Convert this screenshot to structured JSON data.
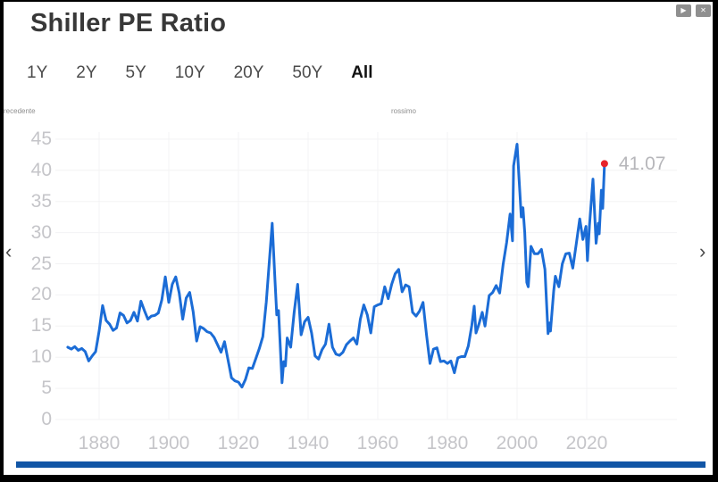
{
  "window": {
    "title": "Shiller PE Ratio",
    "controls": [
      {
        "name": "play",
        "glyph": "▶"
      },
      {
        "name": "close",
        "glyph": "✕"
      }
    ]
  },
  "ranges": [
    {
      "label": "1Y",
      "active": false
    },
    {
      "label": "2Y",
      "active": false
    },
    {
      "label": "5Y",
      "active": false
    },
    {
      "label": "10Y",
      "active": false
    },
    {
      "label": "20Y",
      "active": false
    },
    {
      "label": "50Y",
      "active": false
    },
    {
      "label": "All",
      "active": true
    }
  ],
  "nav": {
    "prev_label": "recedente",
    "next_label": "rossimo",
    "prev_chevron": "‹",
    "next_chevron": "›"
  },
  "chart_data": {
    "type": "line",
    "title": "Shiller PE Ratio",
    "xlabel": "",
    "ylabel": "",
    "xlim": [
      1869,
      2031
    ],
    "ylim": [
      0,
      45
    ],
    "x_ticks": [
      1880,
      1900,
      1920,
      1940,
      1960,
      1980,
      2000,
      2020
    ],
    "y_ticks": [
      45,
      40,
      35,
      30,
      25,
      20,
      15,
      10,
      5,
      0
    ],
    "grid": true,
    "line_color": "#1b6cd6",
    "marker_color": "#e7232b",
    "axis_label_color": "#c5c5c9",
    "last_value_label": "41.07",
    "last_value": 41.07,
    "series": [
      {
        "name": "Shiller PE",
        "points": [
          [
            1871,
            11.6
          ],
          [
            1872,
            11.3
          ],
          [
            1873,
            11.7
          ],
          [
            1874,
            11.1
          ],
          [
            1875,
            11.4
          ],
          [
            1876,
            10.9
          ],
          [
            1877,
            9.4
          ],
          [
            1878,
            10.2
          ],
          [
            1879,
            10.9
          ],
          [
            1880,
            14.2
          ],
          [
            1881,
            18.3
          ],
          [
            1882,
            15.9
          ],
          [
            1883,
            15.3
          ],
          [
            1884,
            14.3
          ],
          [
            1885,
            14.7
          ],
          [
            1886,
            17.1
          ],
          [
            1887,
            16.7
          ],
          [
            1888,
            15.5
          ],
          [
            1889,
            15.9
          ],
          [
            1890,
            17.2
          ],
          [
            1891,
            15.8
          ],
          [
            1892,
            19.0
          ],
          [
            1893,
            17.5
          ],
          [
            1894,
            16.1
          ],
          [
            1895,
            16.6
          ],
          [
            1896,
            16.7
          ],
          [
            1897,
            17.1
          ],
          [
            1898,
            19.2
          ],
          [
            1899,
            22.9
          ],
          [
            1900,
            18.8
          ],
          [
            1901,
            21.7
          ],
          [
            1902,
            22.9
          ],
          [
            1903,
            20.3
          ],
          [
            1904,
            16.1
          ],
          [
            1905,
            19.5
          ],
          [
            1906,
            20.4
          ],
          [
            1907,
            17.3
          ],
          [
            1908,
            12.6
          ],
          [
            1909,
            14.9
          ],
          [
            1910,
            14.6
          ],
          [
            1911,
            14.1
          ],
          [
            1912,
            13.9
          ],
          [
            1913,
            13.2
          ],
          [
            1914,
            12.0
          ],
          [
            1915,
            10.8
          ],
          [
            1916,
            12.5
          ],
          [
            1917,
            9.6
          ],
          [
            1918,
            6.7
          ],
          [
            1919,
            6.2
          ],
          [
            1920,
            6.0
          ],
          [
            1921,
            5.2
          ],
          [
            1922,
            6.4
          ],
          [
            1923,
            8.3
          ],
          [
            1924,
            8.2
          ],
          [
            1925,
            9.8
          ],
          [
            1926,
            11.4
          ],
          [
            1927,
            13.3
          ],
          [
            1928,
            18.9
          ],
          [
            1929.7,
            31.5
          ],
          [
            1930.5,
            22.4
          ],
          [
            1931,
            16.8
          ],
          [
            1931.5,
            17.5
          ],
          [
            1932.5,
            5.9
          ],
          [
            1933,
            9.3
          ],
          [
            1933.5,
            8.6
          ],
          [
            1934,
            13.1
          ],
          [
            1935,
            11.6
          ],
          [
            1936,
            17.2
          ],
          [
            1937,
            21.7
          ],
          [
            1938,
            13.6
          ],
          [
            1939,
            15.7
          ],
          [
            1940,
            16.4
          ],
          [
            1941,
            13.9
          ],
          [
            1942,
            10.2
          ],
          [
            1943,
            9.7
          ],
          [
            1944,
            11.2
          ],
          [
            1945,
            12.1
          ],
          [
            1946,
            15.3
          ],
          [
            1947,
            11.6
          ],
          [
            1948,
            10.5
          ],
          [
            1949,
            10.3
          ],
          [
            1950,
            10.8
          ],
          [
            1951,
            12.0
          ],
          [
            1952,
            12.6
          ],
          [
            1953,
            13.1
          ],
          [
            1954,
            12.1
          ],
          [
            1955,
            16.1
          ],
          [
            1956,
            18.4
          ],
          [
            1957,
            16.8
          ],
          [
            1958,
            13.9
          ],
          [
            1959,
            18.1
          ],
          [
            1960,
            18.4
          ],
          [
            1961,
            18.6
          ],
          [
            1962,
            21.3
          ],
          [
            1963,
            19.4
          ],
          [
            1964,
            21.7
          ],
          [
            1965,
            23.4
          ],
          [
            1966,
            24.1
          ],
          [
            1967,
            20.5
          ],
          [
            1968,
            21.6
          ],
          [
            1969,
            21.3
          ],
          [
            1970,
            17.2
          ],
          [
            1971,
            16.6
          ],
          [
            1972,
            17.4
          ],
          [
            1973,
            18.8
          ],
          [
            1974,
            13.6
          ],
          [
            1975,
            9.0
          ],
          [
            1976,
            11.3
          ],
          [
            1977,
            11.5
          ],
          [
            1978,
            9.3
          ],
          [
            1979,
            9.4
          ],
          [
            1980,
            9.0
          ],
          [
            1981,
            9.4
          ],
          [
            1982,
            7.5
          ],
          [
            1983,
            9.9
          ],
          [
            1984,
            10.1
          ],
          [
            1985,
            10.1
          ],
          [
            1986,
            11.8
          ],
          [
            1987,
            15.1
          ],
          [
            1987.7,
            18.2
          ],
          [
            1988.2,
            13.9
          ],
          [
            1989,
            15.2
          ],
          [
            1990,
            17.2
          ],
          [
            1990.8,
            15.0
          ],
          [
            1992,
            19.9
          ],
          [
            1993,
            20.4
          ],
          [
            1994,
            21.5
          ],
          [
            1995,
            20.3
          ],
          [
            1996,
            24.9
          ],
          [
            1997,
            28.4
          ],
          [
            1998,
            33.0
          ],
          [
            1998.7,
            28.7
          ],
          [
            1999,
            40.7
          ],
          [
            2000,
            44.2
          ],
          [
            2000.8,
            36.5
          ],
          [
            2001.2,
            32.5
          ],
          [
            2001.7,
            34.0
          ],
          [
            2002.2,
            30.0
          ],
          [
            2002.8,
            22.0
          ],
          [
            2003.2,
            21.3
          ],
          [
            2004,
            27.8
          ],
          [
            2005,
            26.6
          ],
          [
            2006,
            26.6
          ],
          [
            2007,
            27.3
          ],
          [
            2008,
            24.1
          ],
          [
            2008.9,
            13.8
          ],
          [
            2009.3,
            15.5
          ],
          [
            2009.6,
            14.2
          ],
          [
            2010.5,
            20.6
          ],
          [
            2011,
            23.0
          ],
          [
            2012,
            21.3
          ],
          [
            2013,
            25.0
          ],
          [
            2014,
            26.6
          ],
          [
            2015,
            26.7
          ],
          [
            2016,
            24.3
          ],
          [
            2017,
            28.2
          ],
          [
            2018,
            32.2
          ],
          [
            2018.9,
            28.9
          ],
          [
            2019.8,
            31.0
          ],
          [
            2020.2,
            25.5
          ],
          [
            2020.8,
            31.2
          ],
          [
            2021.8,
            38.6
          ],
          [
            2022.7,
            28.3
          ],
          [
            2023.3,
            31.5
          ],
          [
            2023.6,
            29.8
          ],
          [
            2024.2,
            36.8
          ],
          [
            2024.6,
            33.9
          ],
          [
            2025.1,
            41.07
          ]
        ]
      }
    ]
  },
  "footer": {
    "scrollbar_color": "#1256a6"
  }
}
